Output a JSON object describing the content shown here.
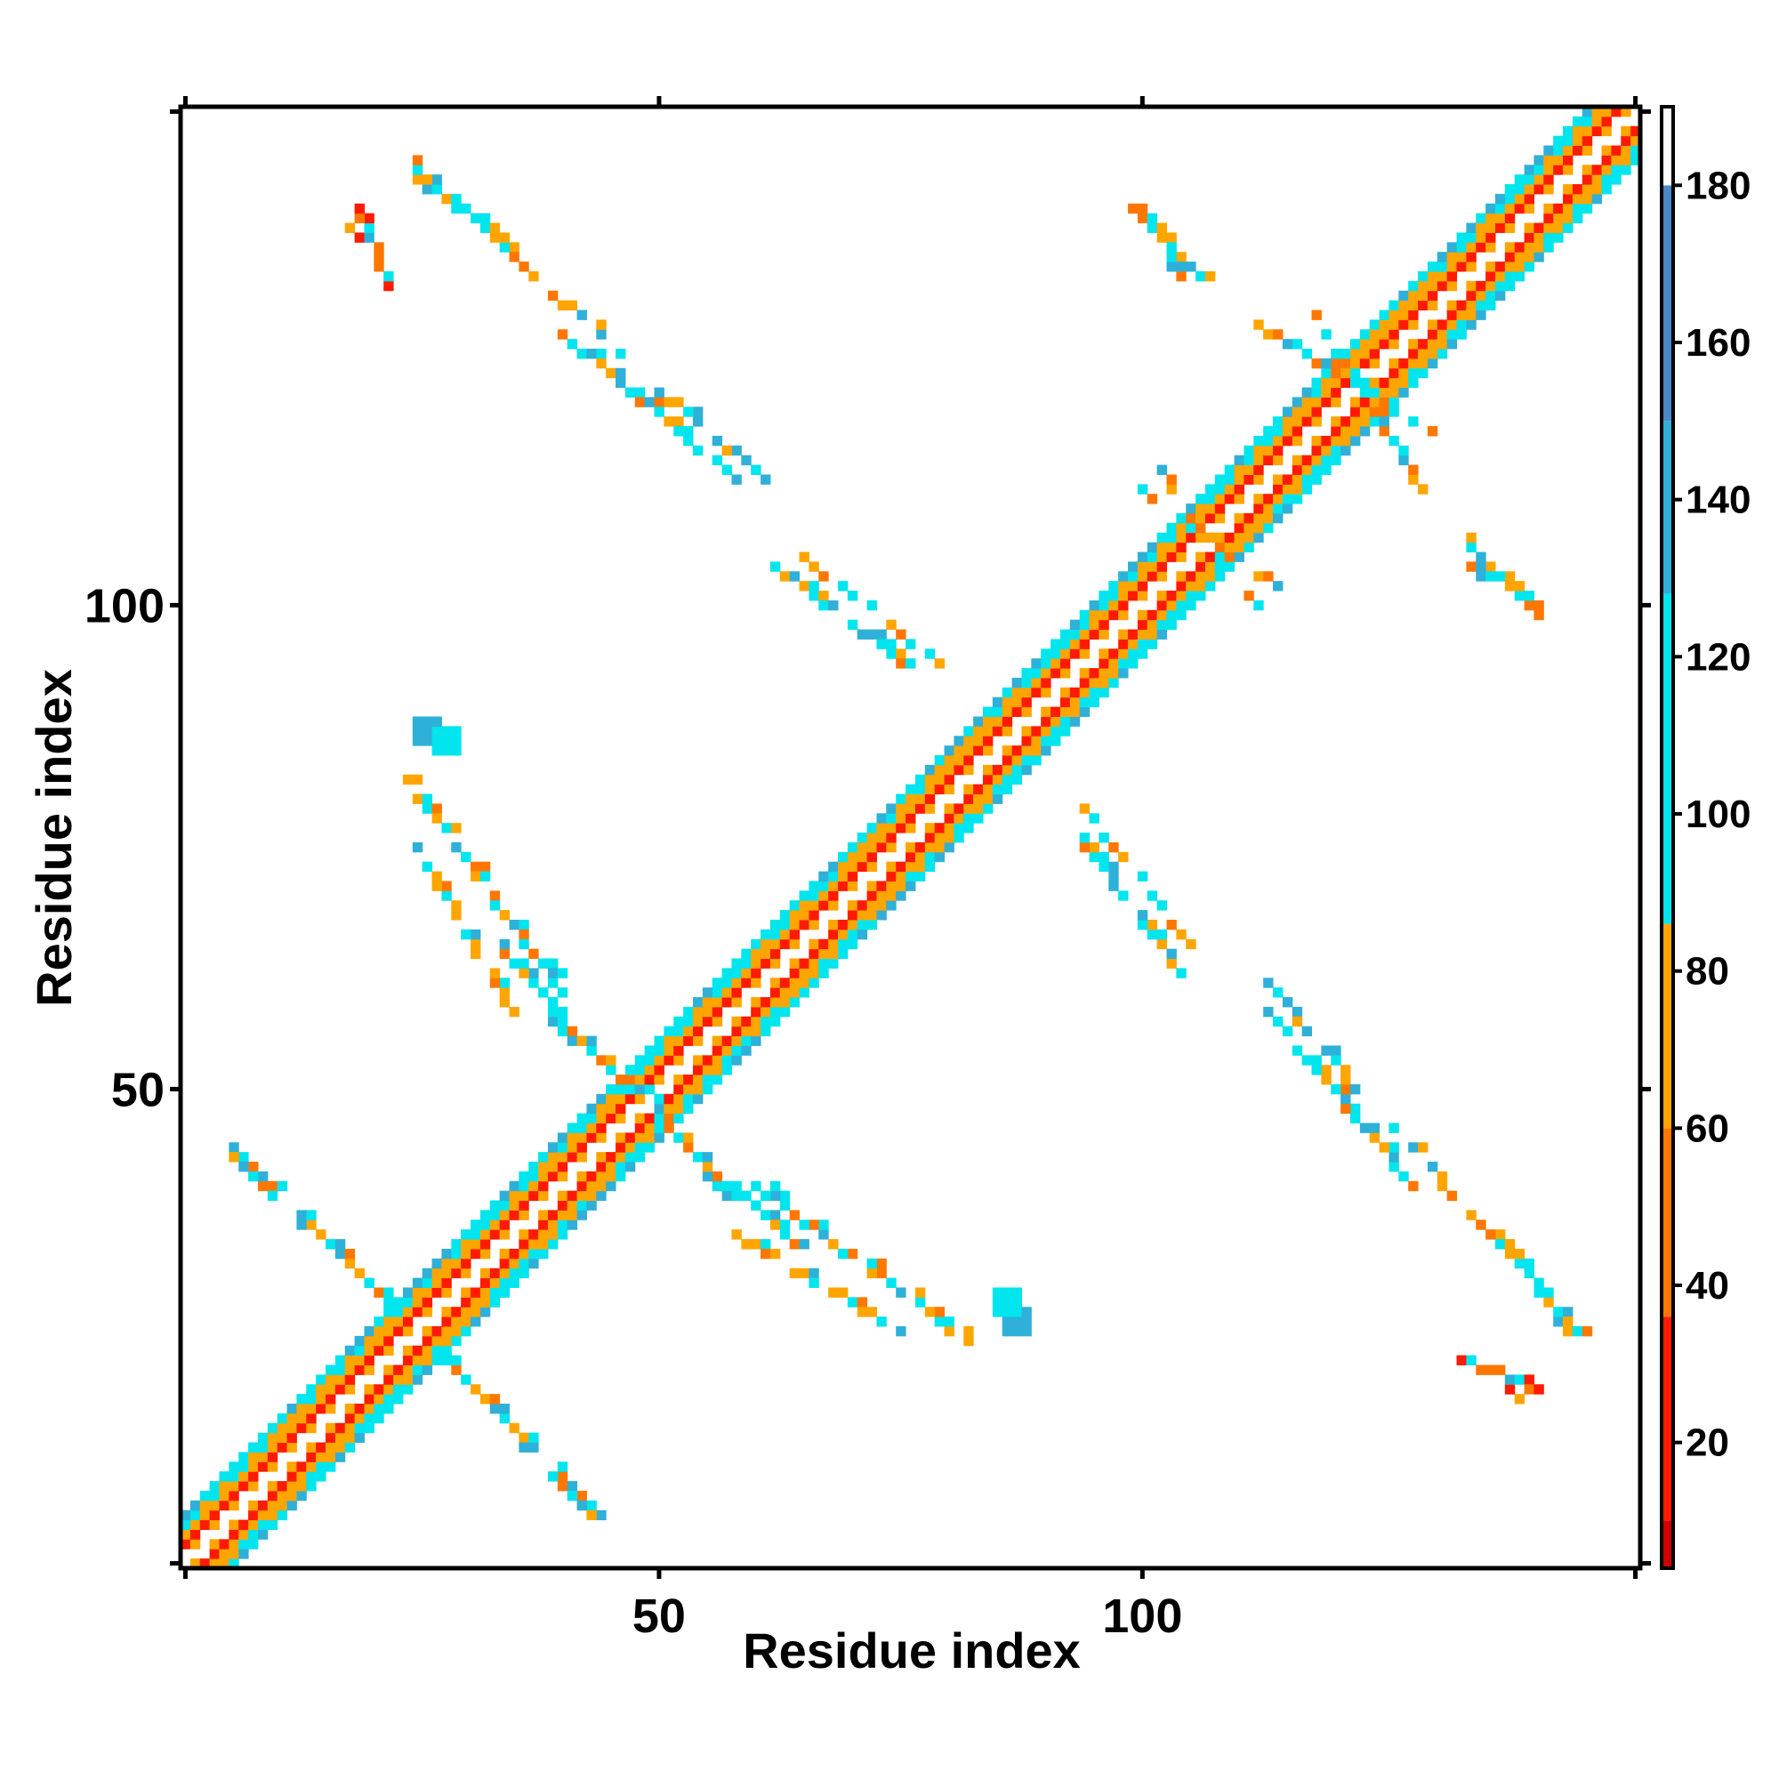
{
  "chart_data": {
    "type": "heatmap",
    "title": "",
    "xlabel": "Residue index",
    "ylabel": "Residue index",
    "xlim": [
      1,
      151
    ],
    "ylim": [
      1,
      151
    ],
    "x_ticks": [
      "50",
      "100"
    ],
    "x_tick_values": [
      50,
      100
    ],
    "y_ticks": [
      "50",
      "100"
    ],
    "y_tick_values": [
      50,
      100
    ],
    "grid": false,
    "legend": "colorbar-right",
    "colorbar": {
      "min": 4,
      "max": 190,
      "ticks": [
        "20",
        "40",
        "60",
        "80",
        "100",
        "120",
        "140",
        "160",
        "180"
      ],
      "tick_values": [
        20,
        40,
        60,
        80,
        100,
        120,
        140,
        160,
        180
      ],
      "bands": [
        {
          "from": 4,
          "to": 10,
          "color": "#cc0000"
        },
        {
          "from": 10,
          "to": 36,
          "color": "#ff1a00"
        },
        {
          "from": 36,
          "to": 60,
          "color": "#ff7700"
        },
        {
          "from": 60,
          "to": 86,
          "color": "#ffa500"
        },
        {
          "from": 86,
          "to": 128,
          "color": "#00e5ee"
        },
        {
          "from": 128,
          "to": 150,
          "color": "#2fb0d8"
        },
        {
          "from": 150,
          "to": 180,
          "color": "#4a88c8"
        },
        {
          "from": 180,
          "to": 190,
          "color": "#ffffff"
        }
      ]
    },
    "diagonal_band": {
      "from": 1,
      "to": 151,
      "halfwidth": 5
    },
    "contact_segments": [
      {
        "x": [
          6,
          21
        ],
        "y": [
          44,
          29
        ],
        "value": 100
      },
      {
        "x": [
          28,
          43
        ],
        "y": [
          22,
          6
        ],
        "value": 100
      },
      {
        "x": [
          39,
          50
        ],
        "y": [
          57,
          48
        ],
        "value": 100
      },
      {
        "x": [
          52,
          65
        ],
        "y": [
          45,
          33
        ],
        "value": 100
      },
      {
        "x": [
          58,
          75
        ],
        "y": [
          35,
          25
        ],
        "value": 70
      },
      {
        "x": [
          24,
          40
        ],
        "y": [
          82,
          60
        ],
        "value": 100
      },
      {
        "x": [
          17,
          22
        ],
        "y": [
          140,
          135
        ],
        "value": 30
      },
      {
        "x": [
          25,
          35
        ],
        "y": [
          144,
          137
        ],
        "value": 70
      },
      {
        "x": [
          40,
          58
        ],
        "y": [
          128,
          113
        ],
        "value": 110
      },
      {
        "x": [
          62,
          77
        ],
        "y": [
          104,
          93
        ],
        "value": 120
      },
      {
        "x": [
          94,
          105
        ],
        "y": [
          79,
          65
        ],
        "value": 110
      },
      {
        "x": [
          113,
          123
        ],
        "y": [
          61,
          49
        ],
        "value": 140
      },
      {
        "x": [
          126,
          145
        ],
        "y": [
          46,
          25
        ],
        "value": 70
      },
      {
        "x": [
          133,
          141
        ],
        "y": [
          22,
          19
        ],
        "value": 30
      },
      {
        "x": [
          99,
          106
        ],
        "y": [
          141,
          134
        ],
        "value": 100
      },
      {
        "x": [
          112,
          130
        ],
        "y": [
          129,
          118
        ],
        "value": 110
      },
      {
        "x": [
          134,
          142
        ],
        "y": [
          104,
          99
        ],
        "value": 100
      },
      {
        "x": [
          100,
          114
        ],
        "y": [
          112,
          102
        ],
        "value": 40
      }
    ],
    "contact_blobs": [
      {
        "x": 25,
        "y": 86,
        "value": 130
      },
      {
        "x": 85,
        "y": 27,
        "value": 120
      }
    ]
  }
}
